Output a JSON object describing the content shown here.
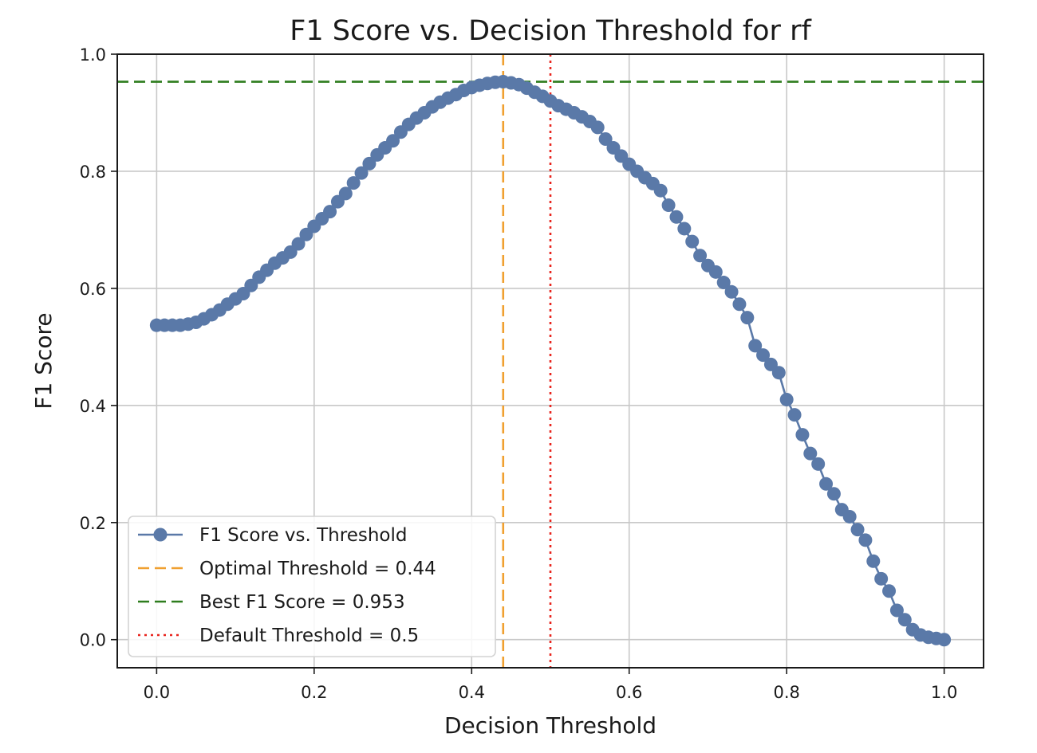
{
  "chart_data": {
    "type": "line",
    "title": "F1 Score vs. Decision Threshold for rf",
    "xlabel": "Decision Threshold",
    "ylabel": "F1 Score",
    "xlim": [
      -0.05,
      1.05
    ],
    "ylim": [
      -0.048,
      1.0
    ],
    "grid": true,
    "legend_position": "lower-left",
    "xticks": [
      {
        "value": 0.0,
        "label": "0.0"
      },
      {
        "value": 0.2,
        "label": "0.2"
      },
      {
        "value": 0.4,
        "label": "0.4"
      },
      {
        "value": 0.6,
        "label": "0.6"
      },
      {
        "value": 0.8,
        "label": "0.8"
      },
      {
        "value": 1.0,
        "label": "1.0"
      }
    ],
    "yticks": [
      {
        "value": 0.0,
        "label": "0.0"
      },
      {
        "value": 0.2,
        "label": "0.2"
      },
      {
        "value": 0.4,
        "label": "0.4"
      },
      {
        "value": 0.6,
        "label": "0.6"
      },
      {
        "value": 0.8,
        "label": "0.8"
      },
      {
        "value": 1.0,
        "label": "1.0"
      }
    ],
    "series": [
      {
        "name": "F1 Score vs. Threshold",
        "color": "#5a79a8",
        "marker": "circle",
        "x": [
          0.0,
          0.01,
          0.02,
          0.03,
          0.04,
          0.05,
          0.06,
          0.07,
          0.08,
          0.09,
          0.1,
          0.11,
          0.12,
          0.13,
          0.14,
          0.15,
          0.16,
          0.17,
          0.18,
          0.19,
          0.2,
          0.21,
          0.22,
          0.23,
          0.24,
          0.25,
          0.26,
          0.27,
          0.28,
          0.29,
          0.3,
          0.31,
          0.32,
          0.33,
          0.34,
          0.35,
          0.36,
          0.37,
          0.38,
          0.39,
          0.4,
          0.41,
          0.42,
          0.43,
          0.44,
          0.45,
          0.46,
          0.47,
          0.48,
          0.49,
          0.5,
          0.51,
          0.52,
          0.53,
          0.54,
          0.55,
          0.56,
          0.57,
          0.58,
          0.59,
          0.6,
          0.61,
          0.62,
          0.63,
          0.64,
          0.65,
          0.66,
          0.67,
          0.68,
          0.69,
          0.7,
          0.71,
          0.72,
          0.73,
          0.74,
          0.75,
          0.76,
          0.77,
          0.78,
          0.79,
          0.8,
          0.81,
          0.82,
          0.83,
          0.84,
          0.85,
          0.86,
          0.87,
          0.88,
          0.89,
          0.9,
          0.91,
          0.92,
          0.93,
          0.94,
          0.95,
          0.96,
          0.97,
          0.98,
          0.99,
          1.0
        ],
        "y": [
          0.537,
          0.537,
          0.537,
          0.537,
          0.539,
          0.542,
          0.548,
          0.555,
          0.563,
          0.573,
          0.582,
          0.591,
          0.605,
          0.619,
          0.631,
          0.643,
          0.652,
          0.662,
          0.676,
          0.692,
          0.706,
          0.719,
          0.731,
          0.748,
          0.762,
          0.78,
          0.797,
          0.813,
          0.828,
          0.84,
          0.852,
          0.867,
          0.88,
          0.891,
          0.9,
          0.91,
          0.918,
          0.925,
          0.931,
          0.938,
          0.943,
          0.947,
          0.95,
          0.952,
          0.953,
          0.951,
          0.948,
          0.942,
          0.935,
          0.928,
          0.92,
          0.912,
          0.906,
          0.9,
          0.893,
          0.885,
          0.875,
          0.855,
          0.84,
          0.826,
          0.812,
          0.8,
          0.789,
          0.779,
          0.767,
          0.742,
          0.722,
          0.702,
          0.68,
          0.656,
          0.639,
          0.628,
          0.61,
          0.594,
          0.573,
          0.55,
          0.502,
          0.486,
          0.47,
          0.456,
          0.41,
          0.384,
          0.35,
          0.318,
          0.3,
          0.266,
          0.249,
          0.222,
          0.21,
          0.188,
          0.17,
          0.134,
          0.104,
          0.083,
          0.05,
          0.034,
          0.017,
          0.008,
          0.004,
          0.002,
          0.0
        ]
      }
    ],
    "reference_lines": [
      {
        "name": "Optimal Threshold = 0.44",
        "orientation": "vertical",
        "value": 0.44,
        "color": "#f0a030",
        "style": "dashed"
      },
      {
        "name": "Best F1 Score = 0.953",
        "orientation": "horizontal",
        "value": 0.953,
        "color": "#2e7d1e",
        "style": "dashed"
      },
      {
        "name": "Default Threshold = 0.5",
        "orientation": "vertical",
        "value": 0.5,
        "color": "#e8251e",
        "style": "dotted"
      }
    ],
    "legend": [
      "F1 Score vs. Threshold",
      "Optimal Threshold = 0.44",
      "Best F1 Score = 0.953",
      "Default Threshold = 0.5"
    ]
  }
}
